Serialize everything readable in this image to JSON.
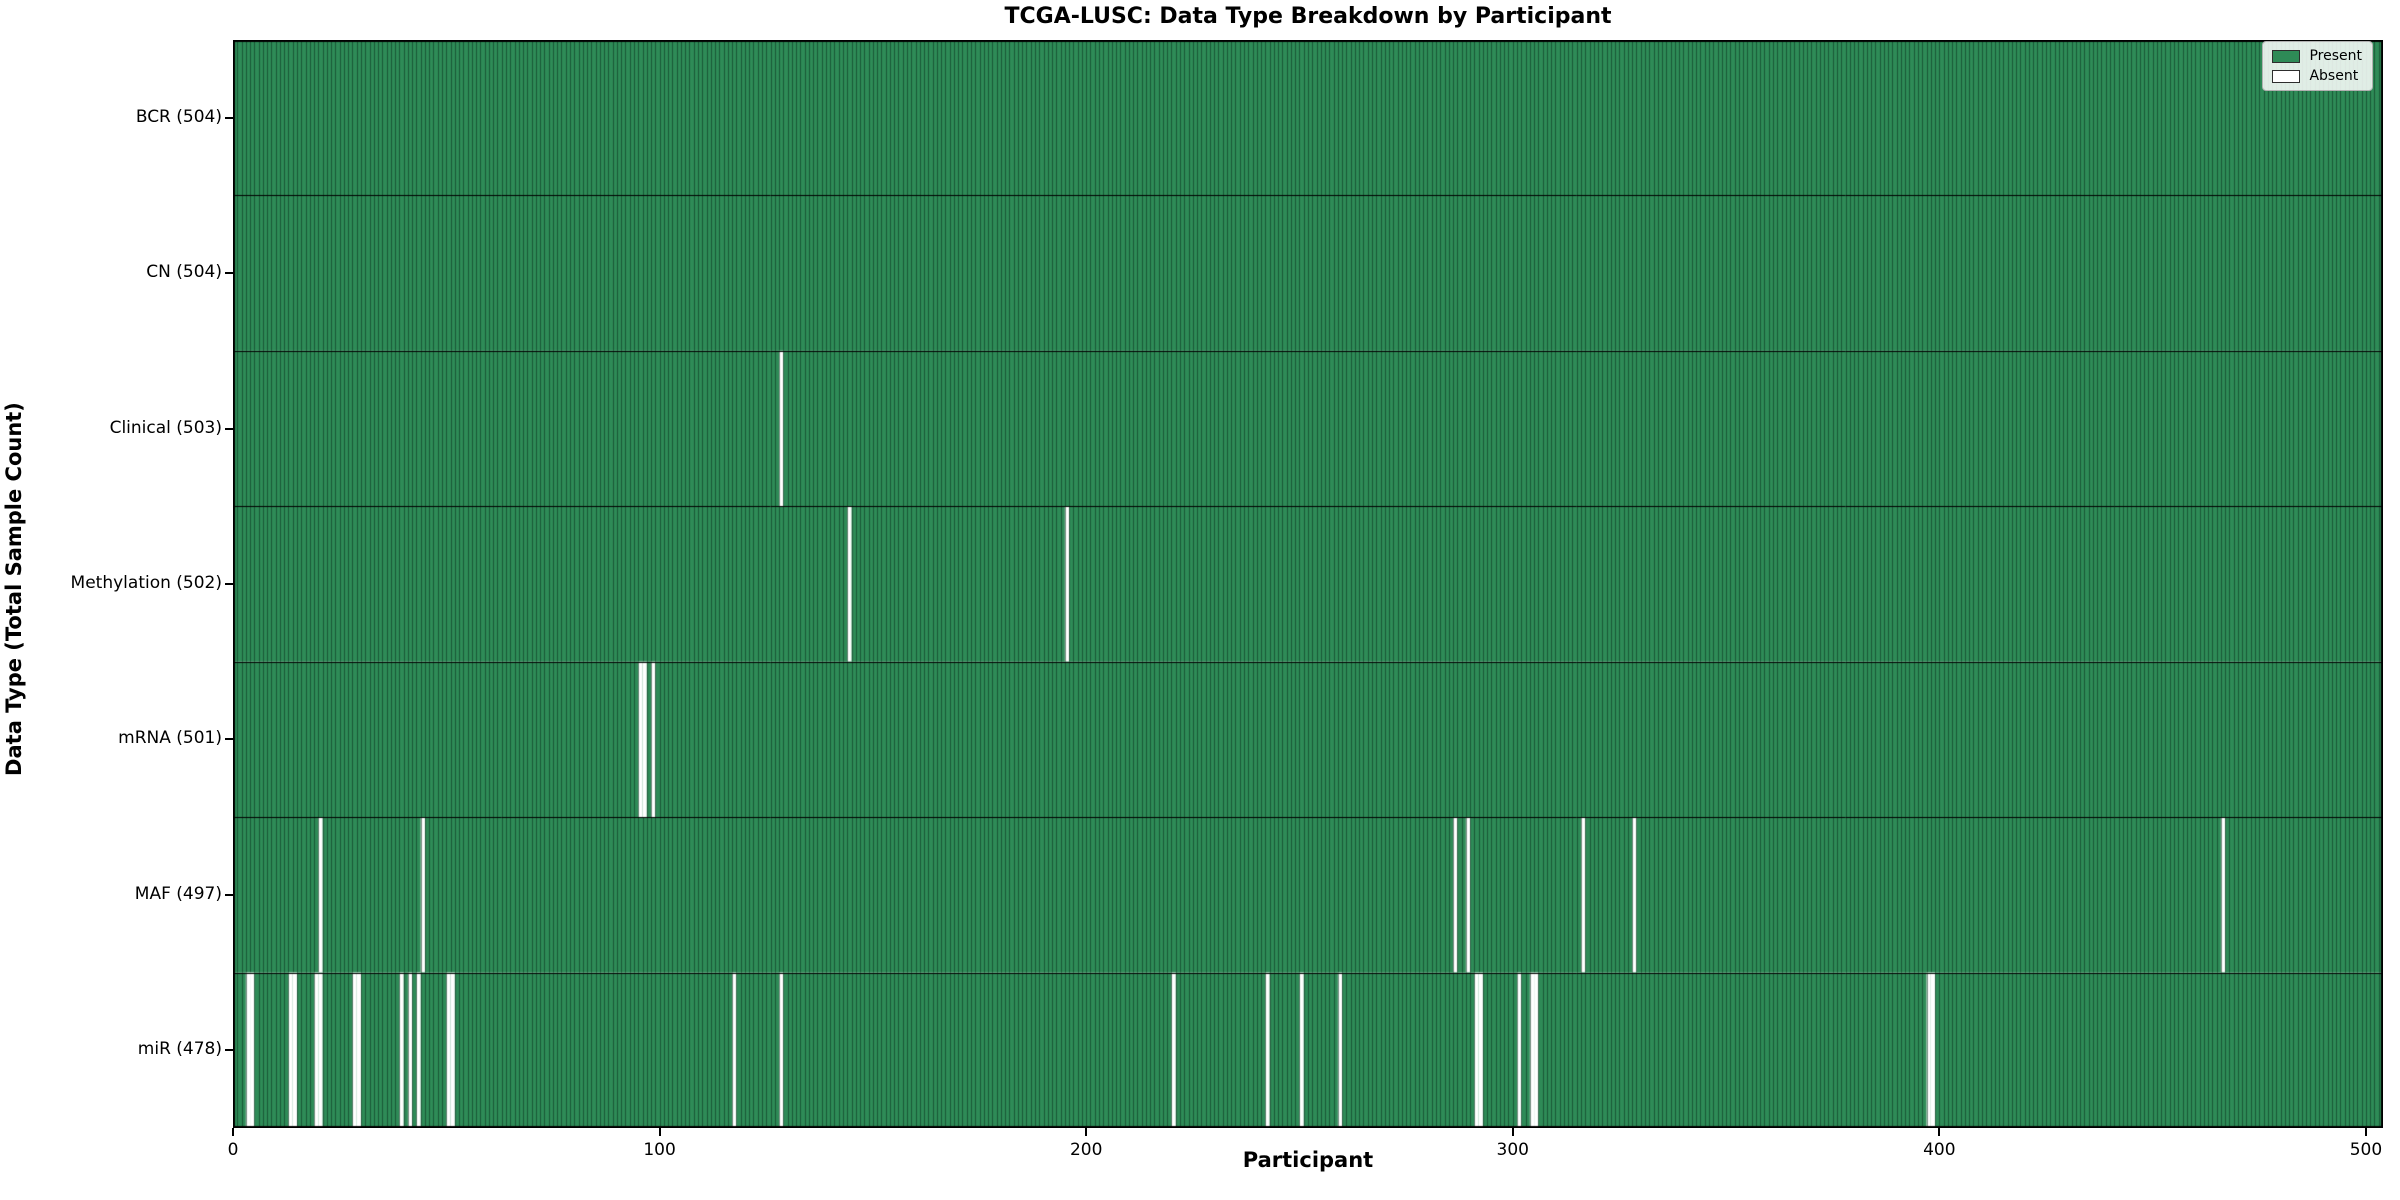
{
  "title": "TCGA-LUSC: Data Type Breakdown by Participant",
  "legend": {
    "present_label": "Present",
    "absent_label": "Absent",
    "position": "upper right"
  },
  "chart_data": {
    "type": "heatmap",
    "title": "TCGA-LUSC: Data Type Breakdown by Participant",
    "xlabel": "Participant",
    "ylabel": "Data Type (Total Sample Count)",
    "x_ticks": [
      0,
      100,
      200,
      300,
      400,
      500
    ],
    "x_range": [
      0,
      504
    ],
    "n_participants": 504,
    "grid": false,
    "legend_entries": [
      "Present",
      "Absent"
    ],
    "colors": {
      "present": "#2e8b57",
      "absent": "#ffffff",
      "bar_edge": "rgba(10,45,28,0.55)",
      "row_separator": "#000000",
      "plot_border": "#000000",
      "legend_border": "#b0b0b0"
    },
    "rows": [
      {
        "label": "BCR (504)",
        "name": "BCR",
        "present_count": 504,
        "absent_participants": []
      },
      {
        "label": "CN (504)",
        "name": "CN",
        "present_count": 504,
        "absent_participants": []
      },
      {
        "label": "Clinical (503)",
        "name": "Clinical",
        "present_count": 503,
        "absent_participants": [
          128
        ]
      },
      {
        "label": "Methylation (502)",
        "name": "Methylation",
        "present_count": 502,
        "absent_participants": [
          144,
          195
        ]
      },
      {
        "label": "mRNA (501)",
        "name": "mRNA",
        "present_count": 501,
        "absent_participants": [
          95,
          96,
          98
        ]
      },
      {
        "label": "MAF (497)",
        "name": "MAF",
        "present_count": 497,
        "absent_participants": [
          20,
          44,
          286,
          289,
          316,
          328,
          466
        ]
      },
      {
        "label": "miR (478)",
        "name": "miR",
        "present_count": 478,
        "absent_participants": [
          3,
          4,
          13,
          14,
          19,
          20,
          28,
          29,
          39,
          41,
          43,
          50,
          51,
          117,
          128,
          220,
          242,
          250,
          259,
          291,
          292,
          301,
          304,
          305,
          397,
          398
        ]
      }
    ]
  }
}
